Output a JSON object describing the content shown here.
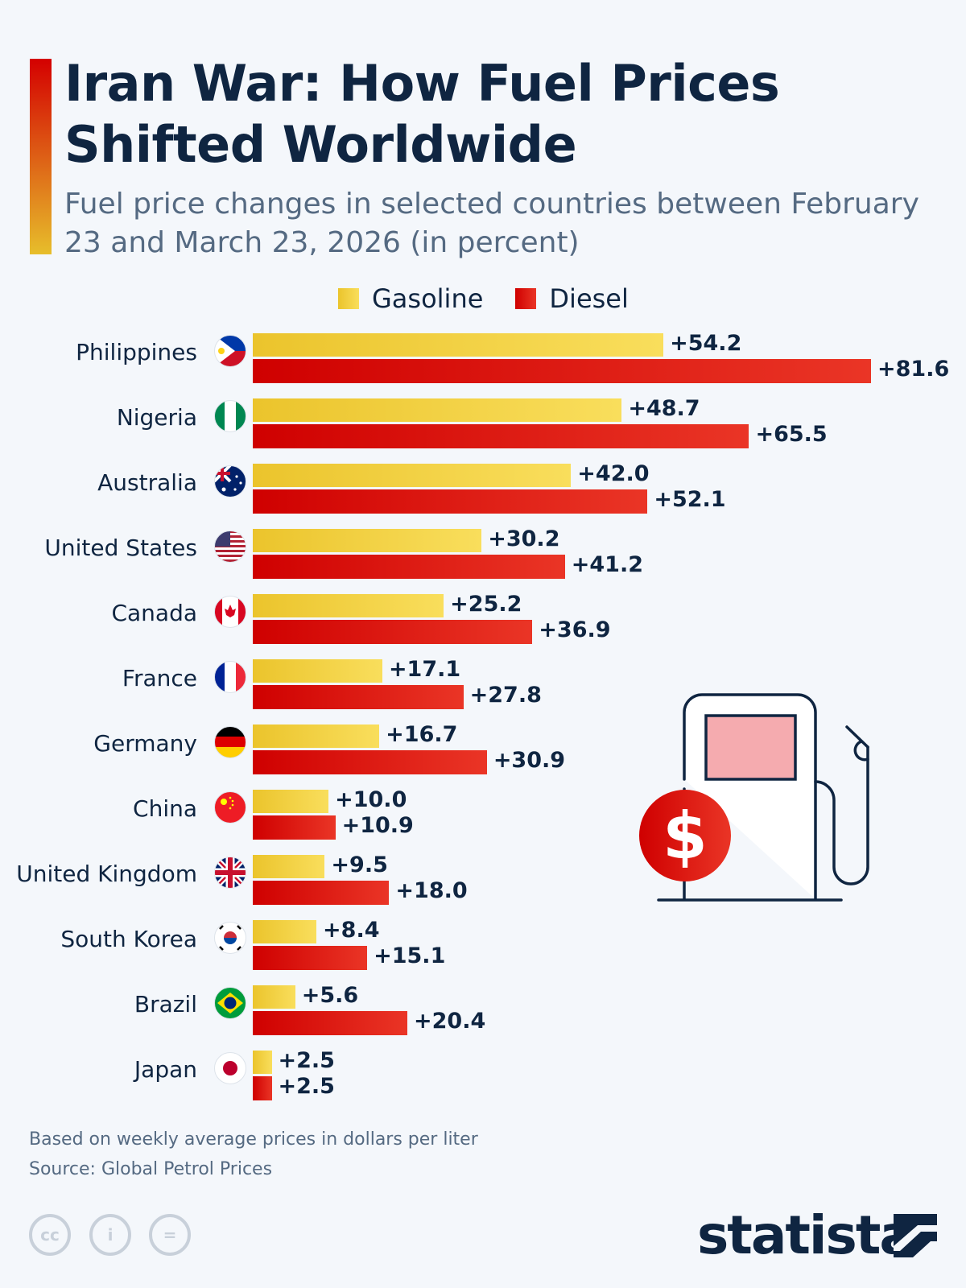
{
  "title": "Iran War: How Fuel Prices Shifted Worldwide",
  "subtitle": "Fuel price changes in selected countries between February 23 and March 23, 2026 (in percent)",
  "colors": {
    "gasoline": "#ebc42c",
    "diesel": "#d40000",
    "text": "#0f2541"
  },
  "chart_data": {
    "type": "bar",
    "orientation": "horizontal",
    "categories": [
      "Philippines",
      "Nigeria",
      "Australia",
      "United States",
      "Canada",
      "France",
      "Germany",
      "China",
      "United Kingdom",
      "South Korea",
      "Brazil",
      "Japan"
    ],
    "series": [
      {
        "name": "Gasoline",
        "values": [
          54.2,
          48.7,
          42.0,
          30.2,
          25.2,
          17.1,
          16.7,
          10.0,
          9.5,
          8.4,
          5.6,
          2.5
        ],
        "labels": [
          "+54.2",
          "+48.7",
          "+42.0",
          "+30.2",
          "+25.2",
          "+17.1",
          "+16.7",
          "+10.0",
          "+9.5",
          "+8.4",
          "+5.6",
          "+2.5"
        ]
      },
      {
        "name": "Diesel",
        "values": [
          81.6,
          65.5,
          52.1,
          41.2,
          36.9,
          27.8,
          30.9,
          10.9,
          18.0,
          15.1,
          20.4,
          2.5
        ],
        "labels": [
          "+81.6",
          "+65.5",
          "+52.1",
          "+41.2",
          "+36.9",
          "+27.8",
          "+30.9",
          "+10.9",
          "+18.0",
          "+15.1",
          "+20.4",
          "+2.5"
        ]
      }
    ],
    "legend": "top",
    "grid": false,
    "xlim": [
      0,
      81.6
    ],
    "flag_icons": [
      "philippines-flag",
      "nigeria-flag",
      "australia-flag",
      "usa-flag",
      "canada-flag",
      "france-flag",
      "germany-flag",
      "china-flag",
      "uk-flag",
      "south-korea-flag",
      "brazil-flag",
      "japan-flag"
    ]
  },
  "footer": {
    "note": "Based on weekly average prices in dollars per liter",
    "source": "Source: Global Petrol Prices",
    "license_icons": [
      "cc-icon",
      "attribution-icon",
      "no-derivatives-icon"
    ],
    "cc": "cc",
    "logo": "statista"
  }
}
